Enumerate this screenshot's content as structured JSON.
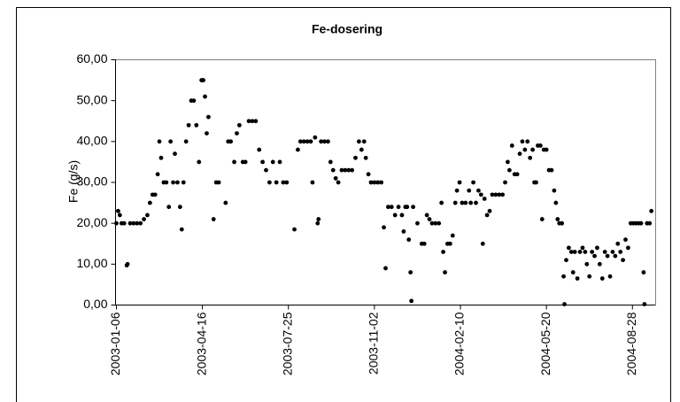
{
  "chart_data": {
    "type": "scatter",
    "title": "Fe-dosering",
    "y_label": "Fe (g/s)",
    "color": "#000000",
    "xlim": [
      "2003-01-05",
      "2004-09-24"
    ],
    "xticks": [
      "2003-01-06",
      "2003-04-16",
      "2003-07-25",
      "2003-11-02",
      "2004-02-10",
      "2004-05-20",
      "2004-08-28"
    ],
    "ylim": [
      0,
      60
    ],
    "yticks": [
      {
        "value": 0,
        "label": "0,00"
      },
      {
        "value": 10,
        "label": "10,00"
      },
      {
        "value": 20,
        "label": "20,00"
      },
      {
        "value": 30,
        "label": "30,00"
      },
      {
        "value": 40,
        "label": "40,00"
      },
      {
        "value": 50,
        "label": "50,00"
      },
      {
        "value": 60,
        "label": "60,00"
      }
    ],
    "x": [
      "2003-01-06",
      "2003-01-08",
      "2003-01-10",
      "2003-01-12",
      "2003-01-15",
      "2003-01-18",
      "2003-01-19",
      "2003-01-22",
      "2003-01-26",
      "2003-01-30",
      "2003-02-03",
      "2003-02-07",
      "2003-02-11",
      "2003-02-14",
      "2003-02-17",
      "2003-02-20",
      "2003-02-23",
      "2003-02-25",
      "2003-02-27",
      "2003-03-02",
      "2003-03-05",
      "2003-03-08",
      "2003-03-10",
      "2003-03-13",
      "2003-03-15",
      "2003-03-18",
      "2003-03-21",
      "2003-03-23",
      "2003-03-25",
      "2003-03-28",
      "2003-03-31",
      "2003-04-03",
      "2003-04-06",
      "2003-04-09",
      "2003-04-12",
      "2003-04-15",
      "2003-04-17",
      "2003-04-19",
      "2003-04-21",
      "2003-04-23",
      "2003-04-29",
      "2003-05-02",
      "2003-05-05",
      "2003-05-13",
      "2003-05-16",
      "2003-05-19",
      "2003-05-23",
      "2003-05-26",
      "2003-05-29",
      "2003-06-02",
      "2003-06-05",
      "2003-06-09",
      "2003-06-13",
      "2003-06-17",
      "2003-06-21",
      "2003-06-25",
      "2003-06-29",
      "2003-07-03",
      "2003-07-07",
      "2003-07-11",
      "2003-07-15",
      "2003-07-19",
      "2003-07-23",
      "2003-08-01",
      "2003-08-05",
      "2003-08-08",
      "2003-08-12",
      "2003-08-16",
      "2003-08-20",
      "2003-08-22",
      "2003-08-25",
      "2003-08-28",
      "2003-08-29",
      "2003-09-01",
      "2003-09-05",
      "2003-09-09",
      "2003-09-12",
      "2003-09-15",
      "2003-09-18",
      "2003-09-21",
      "2003-09-25",
      "2003-09-29",
      "2003-10-03",
      "2003-10-07",
      "2003-10-11",
      "2003-10-15",
      "2003-10-18",
      "2003-10-21",
      "2003-10-23",
      "2003-10-26",
      "2003-10-29",
      "2003-11-02",
      "2003-11-06",
      "2003-11-10",
      "2003-11-13",
      "2003-11-15",
      "2003-11-18",
      "2003-11-22",
      "2003-11-26",
      "2003-11-30",
      "2003-12-04",
      "2003-12-06",
      "2003-12-08",
      "2003-12-10",
      "2003-12-12",
      "2003-12-14",
      "2003-12-15",
      "2003-12-17",
      "2003-12-22",
      "2003-12-27",
      "2003-12-30",
      "2004-01-02",
      "2004-01-05",
      "2004-01-08",
      "2004-01-12",
      "2004-01-16",
      "2004-01-19",
      "2004-01-21",
      "2004-01-23",
      "2004-01-26",
      "2004-01-29",
      "2004-02-01",
      "2004-02-04",
      "2004-02-06",
      "2004-02-09",
      "2004-02-12",
      "2004-02-16",
      "2004-02-20",
      "2004-02-22",
      "2004-02-25",
      "2004-02-28",
      "2004-03-02",
      "2004-03-05",
      "2004-03-07",
      "2004-03-09",
      "2004-03-12",
      "2004-03-15",
      "2004-03-18",
      "2004-03-22",
      "2004-03-26",
      "2004-03-30",
      "2004-04-02",
      "2004-04-05",
      "2004-04-07",
      "2004-04-10",
      "2004-04-13",
      "2004-04-16",
      "2004-04-19",
      "2004-04-22",
      "2004-04-25",
      "2004-04-28",
      "2004-05-01",
      "2004-05-04",
      "2004-05-06",
      "2004-05-08",
      "2004-05-10",
      "2004-05-13",
      "2004-05-15",
      "2004-05-17",
      "2004-05-20",
      "2004-05-23",
      "2004-05-26",
      "2004-05-29",
      "2004-05-31",
      "2004-06-02",
      "2004-06-04",
      "2004-06-07",
      "2004-06-09",
      "2004-06-10",
      "2004-06-12",
      "2004-06-15",
      "2004-06-18",
      "2004-06-20",
      "2004-06-22",
      "2004-06-25",
      "2004-06-28",
      "2004-07-01",
      "2004-07-04",
      "2004-07-06",
      "2004-07-09",
      "2004-07-12",
      "2004-07-15",
      "2004-07-18",
      "2004-07-21",
      "2004-07-24",
      "2004-07-27",
      "2004-07-30",
      "2004-08-02",
      "2004-08-05",
      "2004-08-08",
      "2004-08-11",
      "2004-08-14",
      "2004-08-17",
      "2004-08-20",
      "2004-08-23",
      "2004-08-26",
      "2004-08-29",
      "2004-09-01",
      "2004-09-04",
      "2004-09-07",
      "2004-09-10",
      "2004-09-11",
      "2004-09-14",
      "2004-09-17",
      "2004-09-19"
    ],
    "values": [
      20,
      23,
      22,
      20,
      20,
      9.7,
      10,
      20,
      20,
      20,
      20,
      21,
      22,
      25,
      27,
      27,
      32,
      40,
      36,
      30,
      30,
      24,
      40,
      30,
      37,
      30,
      24,
      18.5,
      30,
      40,
      44,
      50,
      50,
      44,
      35,
      55,
      55,
      51,
      42,
      46,
      21,
      30,
      30,
      25,
      40,
      40,
      35,
      42,
      44,
      35,
      35,
      45,
      45,
      45,
      38,
      35,
      33,
      30,
      35,
      30,
      35,
      30,
      30,
      18.5,
      38,
      40,
      40,
      40,
      40,
      30,
      41,
      20,
      21,
      40,
      40,
      40,
      35,
      33,
      31,
      30,
      33,
      33,
      33,
      33,
      36,
      40,
      38,
      40,
      36,
      32,
      30,
      30,
      30,
      30,
      19,
      9,
      24,
      24,
      22,
      24,
      22,
      18,
      24,
      24,
      16,
      8,
      1,
      24,
      20,
      15,
      15,
      22,
      21,
      20,
      20,
      20,
      25,
      13,
      8,
      15,
      15,
      17,
      25,
      28,
      30,
      25,
      25,
      28,
      25,
      30,
      25,
      28,
      27,
      15,
      26,
      22,
      23,
      27,
      27,
      27,
      27,
      30,
      35,
      33,
      39,
      32,
      32,
      37,
      40,
      38,
      40,
      36,
      38,
      30,
      30,
      39,
      39,
      21,
      38,
      38,
      33,
      33,
      28,
      25,
      21,
      20,
      20,
      7,
      0.2,
      11,
      14,
      13,
      8,
      13,
      6.5,
      13,
      14,
      13,
      10,
      7,
      13,
      12,
      14,
      10,
      6.5,
      13,
      12,
      7,
      13,
      12,
      15,
      13,
      11,
      16,
      14,
      20,
      20,
      20,
      20,
      20,
      8,
      0.2,
      20,
      20,
      23
    ]
  }
}
